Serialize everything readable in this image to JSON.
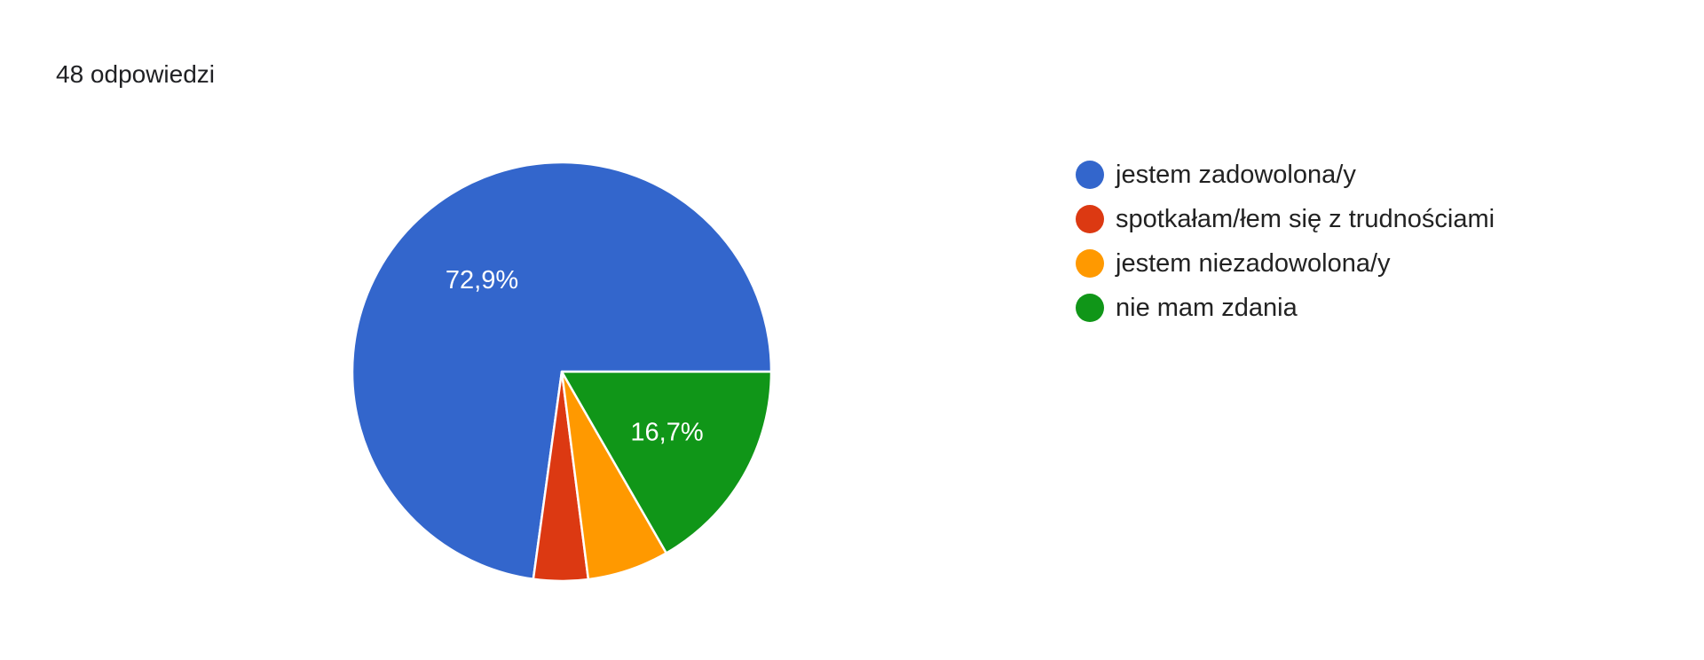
{
  "summary": {
    "responses_label": "48 odpowiedzi"
  },
  "chart_data": {
    "type": "pie",
    "total_responses": 48,
    "categories": [
      "jestem zadowolona/y",
      "spotkałam/łem się z trudnościami",
      "jestem niezadowolona/y",
      "nie mam zdania"
    ],
    "values": [
      72.9,
      4.2,
      6.3,
      16.7
    ],
    "counts": [
      35,
      2,
      3,
      8
    ],
    "colors": [
      "#3366cc",
      "#dc3912",
      "#ff9900",
      "#109618"
    ],
    "data_labels": [
      "72,9%",
      "",
      "",
      "16,7%"
    ],
    "start_angle_deg": 90,
    "direction": "counterclockwise",
    "legend_position": "right"
  }
}
